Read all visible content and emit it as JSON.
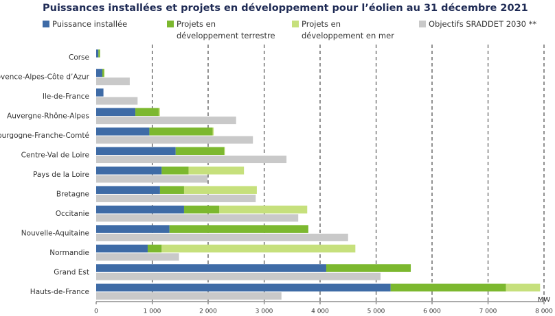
{
  "chart_data": {
    "type": "hbar",
    "title": "Puissances installées et projets en développement pour l’éolien au 31 décembre 2021",
    "x_label": "MW",
    "categories": [
      "Corse",
      "Provence-Alpes-Côte d’Azur",
      "Ile-de-France",
      "Auvergne-Rhône-Alpes",
      "Bourgogne-Franche-Comté",
      "Centre-Val de Loire",
      "Pays de la Loire",
      "Bretagne",
      "Occitanie",
      "Nouvelle-Aquitaine",
      "Normandie",
      "Grand Est",
      "Hauts-de-France"
    ],
    "series": [
      {
        "name": "Puissance installée",
        "color": "#3e6ba6",
        "values": [
          40,
          110,
          130,
          700,
          950,
          1420,
          1170,
          1140,
          1570,
          1310,
          920,
          4110,
          5260
        ]
      },
      {
        "name": "Projets en développement terrestre",
        "color": "#7cb82f",
        "values": [
          30,
          30,
          0,
          420,
          1130,
          870,
          480,
          430,
          630,
          2480,
          250,
          1510,
          2060
        ]
      },
      {
        "name": "Projets en développement en mer",
        "color": "#c6e07c",
        "values": [
          0,
          10,
          0,
          20,
          20,
          10,
          990,
          1300,
          1570,
          0,
          3460,
          0,
          610
        ]
      },
      {
        "name": "Objectifs SRADDET 2030 **",
        "color": "#c9c9c9",
        "values": [
          null,
          600,
          740,
          2500,
          2800,
          3400,
          1990,
          2850,
          3610,
          4500,
          1480,
          5080,
          3310
        ]
      }
    ],
    "xlim": [
      0,
      8000
    ],
    "xticks": [
      0,
      {
        "value": 1000,
        "label": "1 000"
      },
      {
        "value": 2000,
        "label": "2 000"
      },
      {
        "value": 3000,
        "label": "3 000"
      },
      {
        "value": 4000,
        "label": "4 000"
      },
      {
        "value": 5000,
        "label": "5 000"
      },
      {
        "value": 6000,
        "label": "6 000"
      },
      {
        "value": 7000,
        "label": "7 000"
      },
      {
        "value": 8000,
        "label": "8 000"
      }
    ],
    "grid": true
  }
}
